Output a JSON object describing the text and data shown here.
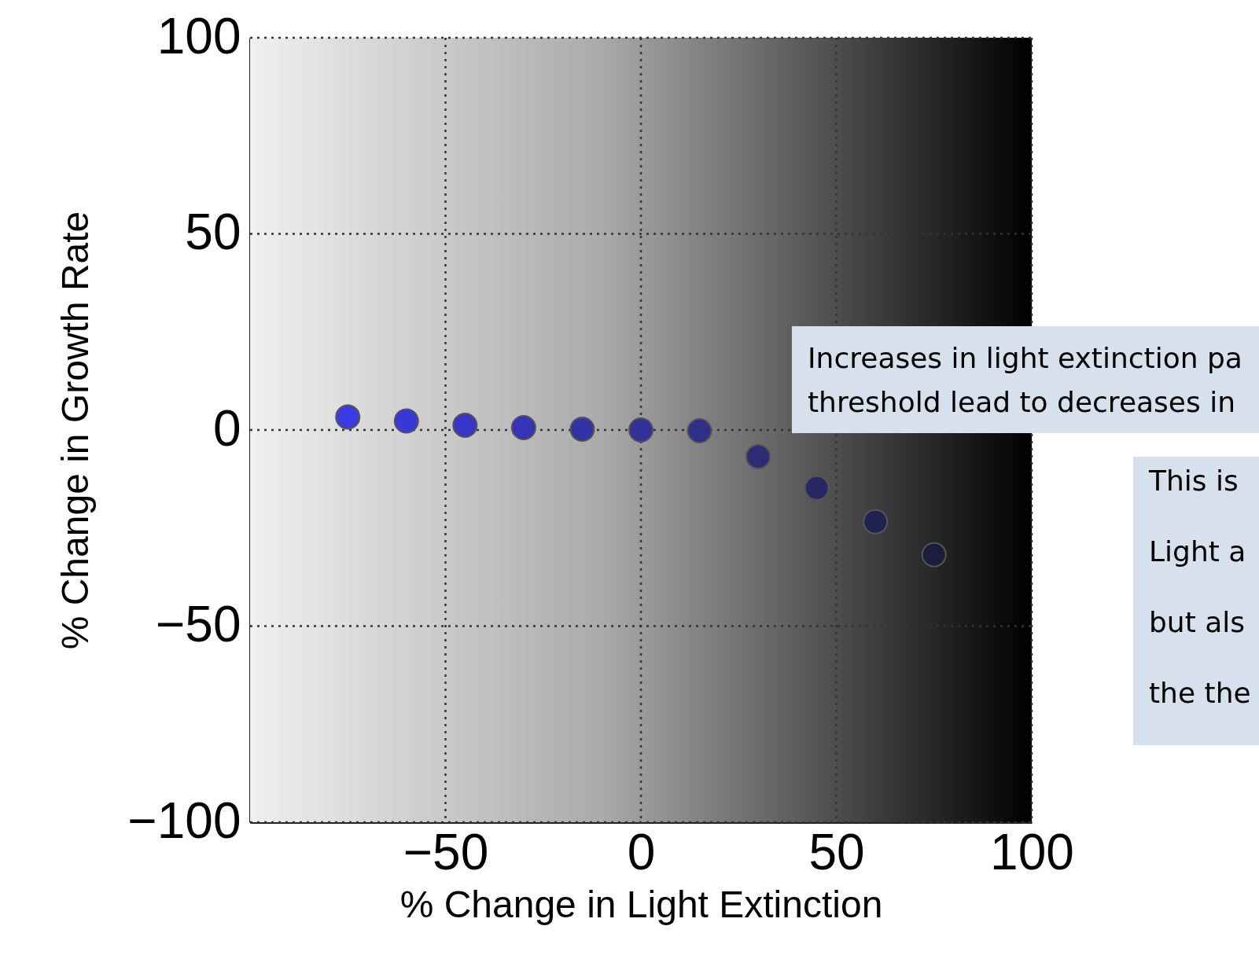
{
  "chart_data": {
    "type": "scatter",
    "xlabel": "% Change in Light Extinction",
    "ylabel": "% Change in Growth Rate",
    "x": [
      -75,
      -60,
      -45,
      -30,
      -15,
      0,
      15,
      30,
      45,
      60,
      75
    ],
    "series": [
      {
        "values": [
          3.3,
          2.3,
          1.2,
          0.6,
          0.2,
          0,
          -0.2,
          -6.8,
          -14.8,
          -23.4,
          -31.8
        ],
        "colors": [
          "#3a3ae6",
          "#3838d8",
          "#3535c8",
          "#3434b8",
          "#3333a8",
          "#313198",
          "#2f2f88",
          "#2b2b76",
          "#272764",
          "#222250",
          "#1c1c3c"
        ]
      }
    ],
    "xlim": [
      -100,
      100
    ],
    "ylim": [
      -100,
      100
    ],
    "xticks": [
      -50,
      0,
      50,
      100
    ],
    "yticks": [
      -100,
      -50,
      0,
      50,
      100
    ],
    "grid": true,
    "marker": "circle",
    "annotations": [
      "Increases in light extinction pa\nthreshold lead to decreases in",
      "This is\nLight a\nbut als\nthe the"
    ]
  }
}
